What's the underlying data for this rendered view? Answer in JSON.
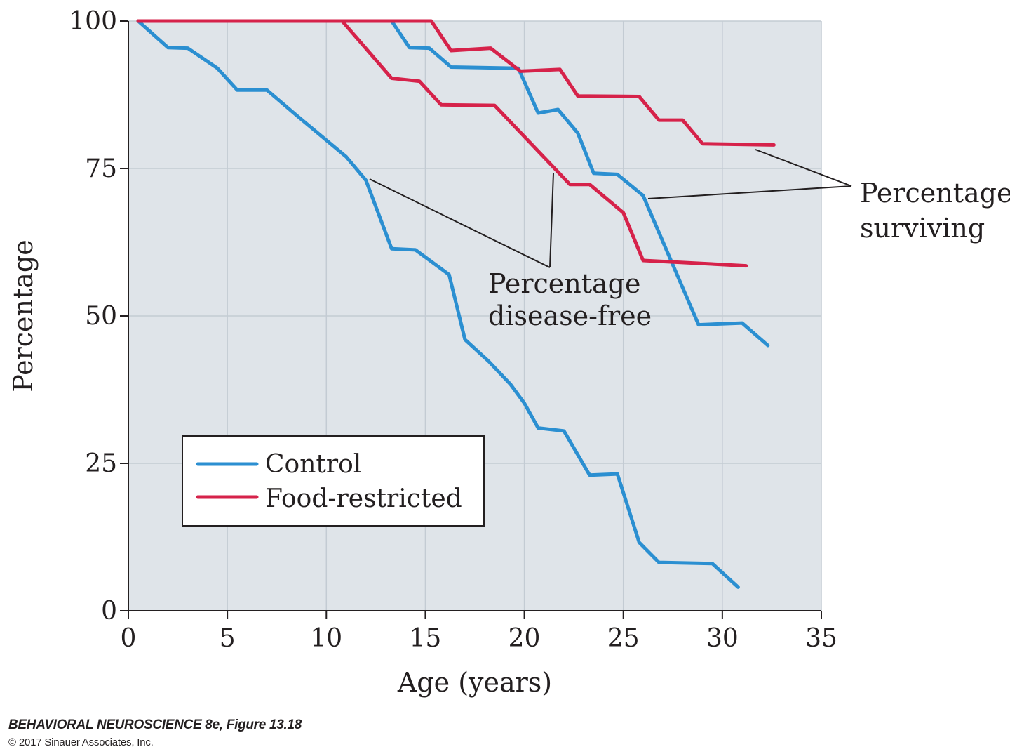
{
  "chart_data": {
    "type": "line",
    "xlabel": "Age (years)",
    "ylabel": "Percentage",
    "xlim": [
      0,
      35
    ],
    "ylim": [
      0,
      100
    ],
    "xticks": [
      0,
      5,
      10,
      15,
      20,
      25,
      30,
      35
    ],
    "yticks": [
      0,
      25,
      50,
      75,
      100
    ],
    "grid": true,
    "legend": {
      "placement": "lower-left",
      "entries": [
        {
          "label": "Control",
          "color": "#2b8fd1"
        },
        {
          "label": "Food-restricted",
          "color": "#d6224a"
        }
      ]
    },
    "annotations": [
      {
        "label_lines": [
          "Percentage",
          "surviving"
        ]
      },
      {
        "label_lines": [
          "Percentage",
          "disease-free"
        ]
      }
    ],
    "series": [
      {
        "group": "Control",
        "kind": "disease-free",
        "color": "#2b8fd1",
        "points": [
          [
            0.5,
            100
          ],
          [
            2,
            95.5
          ],
          [
            3,
            95.4
          ],
          [
            4.5,
            92
          ],
          [
            5.5,
            88.3
          ],
          [
            7,
            88.3
          ],
          [
            8.5,
            84
          ],
          [
            11,
            77
          ],
          [
            12,
            73
          ],
          [
            13.3,
            61.4
          ],
          [
            14.5,
            61.2
          ],
          [
            16.2,
            57
          ],
          [
            17,
            46
          ],
          [
            18.2,
            42.3
          ],
          [
            19.3,
            38.4
          ],
          [
            20,
            35.2
          ],
          [
            20.7,
            31
          ],
          [
            22,
            30.5
          ],
          [
            23.3,
            23
          ],
          [
            24.7,
            23.2
          ],
          [
            25.8,
            11.6
          ],
          [
            26.8,
            8.2
          ],
          [
            29.5,
            8
          ],
          [
            30.8,
            4
          ]
        ]
      },
      {
        "group": "Control",
        "kind": "surviving",
        "color": "#2b8fd1",
        "points": [
          [
            0.5,
            100
          ],
          [
            13.3,
            100
          ],
          [
            14.2,
            95.5
          ],
          [
            15.2,
            95.4
          ],
          [
            16.3,
            92.2
          ],
          [
            19.7,
            92
          ],
          [
            20.7,
            84.4
          ],
          [
            21.7,
            85
          ],
          [
            22.7,
            81
          ],
          [
            23.5,
            74.2
          ],
          [
            24.7,
            74
          ],
          [
            26,
            70.4
          ],
          [
            28.8,
            48.5
          ],
          [
            31,
            48.8
          ],
          [
            32.3,
            45
          ]
        ]
      },
      {
        "group": "Food-restricted",
        "kind": "disease-free",
        "color": "#d6224a",
        "points": [
          [
            0.5,
            100
          ],
          [
            10.8,
            100
          ],
          [
            13.3,
            90.3
          ],
          [
            14.7,
            89.8
          ],
          [
            15.8,
            85.8
          ],
          [
            18.5,
            85.7
          ],
          [
            22.3,
            72.3
          ],
          [
            23.3,
            72.3
          ],
          [
            25,
            67.5
          ],
          [
            26,
            59.4
          ],
          [
            31.2,
            58.5
          ]
        ]
      },
      {
        "group": "Food-restricted",
        "kind": "surviving",
        "color": "#d6224a",
        "points": [
          [
            0.5,
            100
          ],
          [
            15.3,
            100
          ],
          [
            16.3,
            95
          ],
          [
            18.3,
            95.4
          ],
          [
            19.8,
            91.5
          ],
          [
            21.8,
            91.8
          ],
          [
            22.7,
            87.3
          ],
          [
            25.8,
            87.2
          ],
          [
            26.8,
            83.2
          ],
          [
            28,
            83.2
          ],
          [
            29,
            79.2
          ],
          [
            32.6,
            79
          ]
        ]
      }
    ]
  },
  "credit": {
    "line1": "BEHAVIORAL NEUROSCIENCE 8e, Figure 13.18",
    "line2": "© 2017 Sinauer Associates, Inc."
  }
}
